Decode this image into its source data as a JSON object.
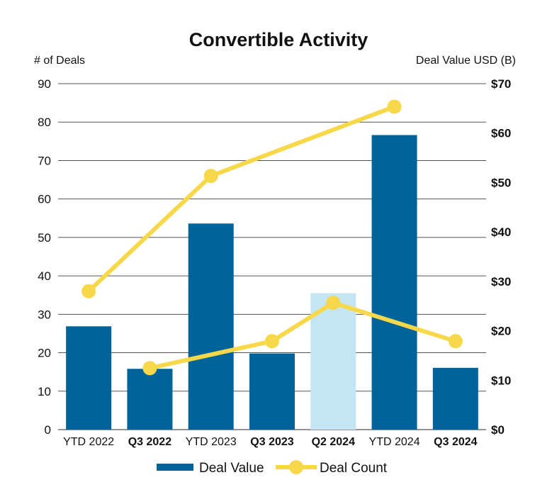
{
  "chart_data": {
    "type": "bar",
    "title": "Convertible Activity",
    "ylabel_left": "# of Deals",
    "ylabel_right": "Deal Value USD (B)",
    "categories": [
      "YTD 2022",
      "Q3 2022",
      "YTD 2023",
      "Q3 2023",
      "Q2 2024",
      "YTD 2024",
      "Q3 2024"
    ],
    "category_bold": [
      false,
      true,
      false,
      true,
      true,
      false,
      true
    ],
    "left_ticks": [
      "0",
      "10",
      "20",
      "30",
      "40",
      "50",
      "60",
      "70",
      "80",
      "90"
    ],
    "right_ticks": [
      "$0",
      "$10",
      "$20",
      "$30",
      "$40",
      "$50",
      "$60",
      "$70"
    ],
    "ylim_left": [
      0,
      90
    ],
    "ylim_right": [
      0,
      70
    ],
    "grid": true,
    "series": [
      {
        "name": "Deal Value",
        "type": "bar",
        "axis": "right",
        "values": [
          20.9,
          12.3,
          41.7,
          15.4,
          27.6,
          59.6,
          12.5
        ],
        "color": "#00649b",
        "highlight_color": "#c5e5f3",
        "highlight_index": 4
      },
      {
        "name": "Deal Count",
        "type": "line",
        "axis": "left",
        "segments": [
          [
            0,
            2,
            5
          ],
          [
            1,
            3,
            4,
            6
          ]
        ],
        "values": [
          36,
          16,
          66,
          23,
          33,
          84,
          23
        ],
        "color": "#f7d84a"
      }
    ],
    "legend_position": "bottom-center"
  }
}
